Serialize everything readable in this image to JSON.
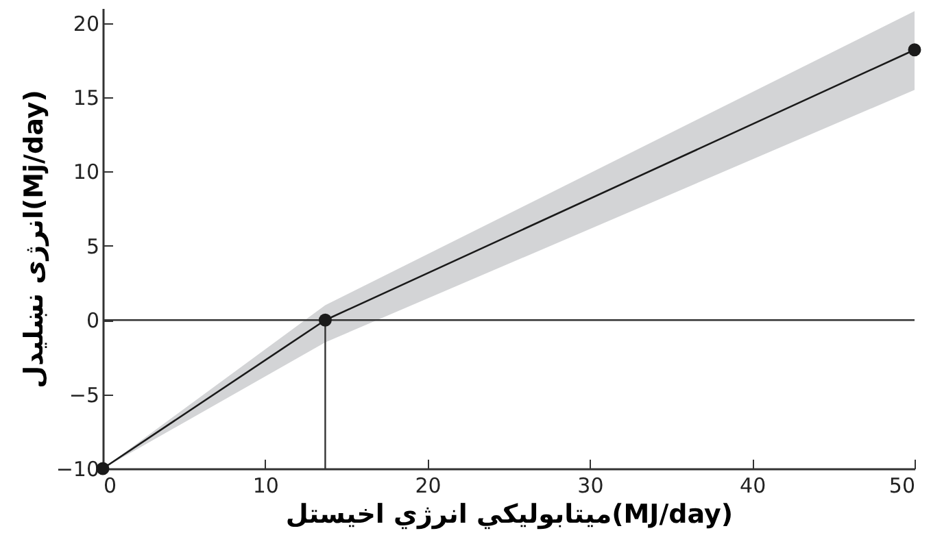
{
  "chart_data": {
    "type": "line",
    "xlabel": "ميتابوليکي انرژي اخيستل(MJ/day)",
    "ylabel": "انرژی نښلیدل(Mj/day)",
    "x": [
      0,
      13.7,
      50
    ],
    "series": [
      {
        "color": "#1a1a1a",
        "values": [
          -10,
          0,
          18.2
        ],
        "lower": [
          -10,
          -1.5,
          15.5
        ],
        "upper": [
          -10,
          1,
          20.8
        ]
      }
    ],
    "xlim": [
      0,
      50
    ],
    "xticks": [
      0,
      10,
      20,
      30,
      40,
      50
    ],
    "ylim": [
      -10,
      21
    ],
    "yticks": [
      -10,
      -5,
      0,
      5,
      10,
      15,
      20
    ],
    "ref_lines": [
      {
        "axis": "y",
        "value": 0,
        "color": "#333333"
      },
      {
        "axis": "x",
        "value": 13.7,
        "color": "#333333"
      }
    ],
    "marker": "circle"
  }
}
